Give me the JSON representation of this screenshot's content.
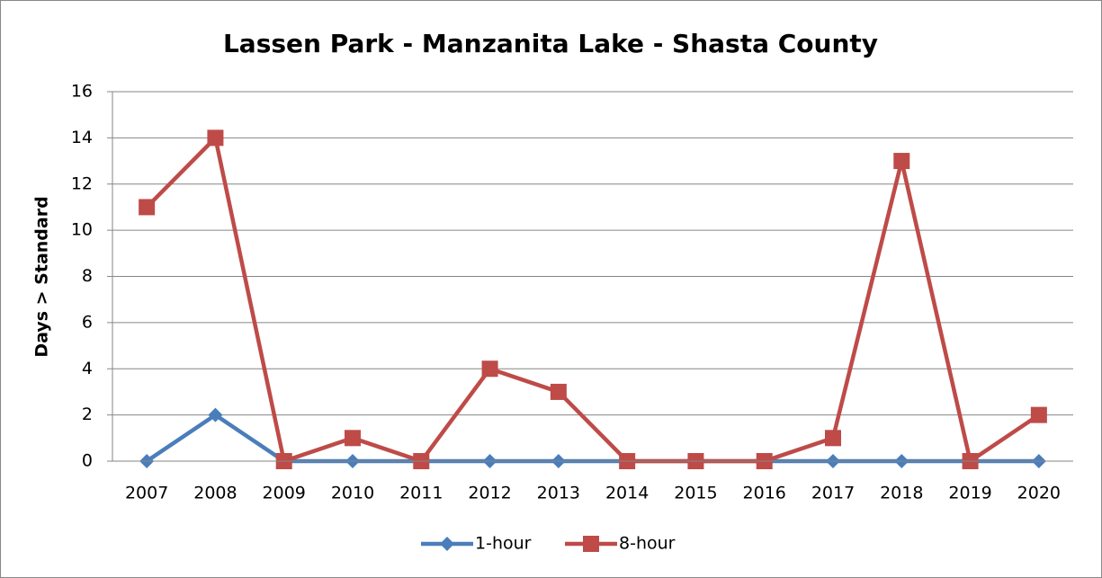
{
  "chart_data": {
    "type": "line",
    "title": "Lassen Park - Manzanita Lake - Shasta County",
    "y_label": "Days > Standard",
    "categories": [
      "2007",
      "2008",
      "2009",
      "2010",
      "2011",
      "2012",
      "2013",
      "2014",
      "2015",
      "2016",
      "2017",
      "2018",
      "2019",
      "2020"
    ],
    "series": [
      {
        "name": "1-hour",
        "color": "#4a7ebb",
        "marker": "diamond",
        "values": [
          0,
          2,
          0,
          0,
          0,
          0,
          0,
          0,
          0,
          0,
          0,
          0,
          0,
          0
        ]
      },
      {
        "name": "8-hour",
        "color": "#be4b48",
        "marker": "square",
        "values": [
          11,
          14,
          0,
          1,
          0,
          4,
          3,
          0,
          0,
          0,
          1,
          13,
          0,
          2
        ]
      }
    ],
    "ylim": [
      0,
      16
    ],
    "yticks": [
      0,
      2,
      4,
      6,
      8,
      10,
      12,
      14,
      16
    ],
    "grid": true,
    "legend": "bottom"
  }
}
